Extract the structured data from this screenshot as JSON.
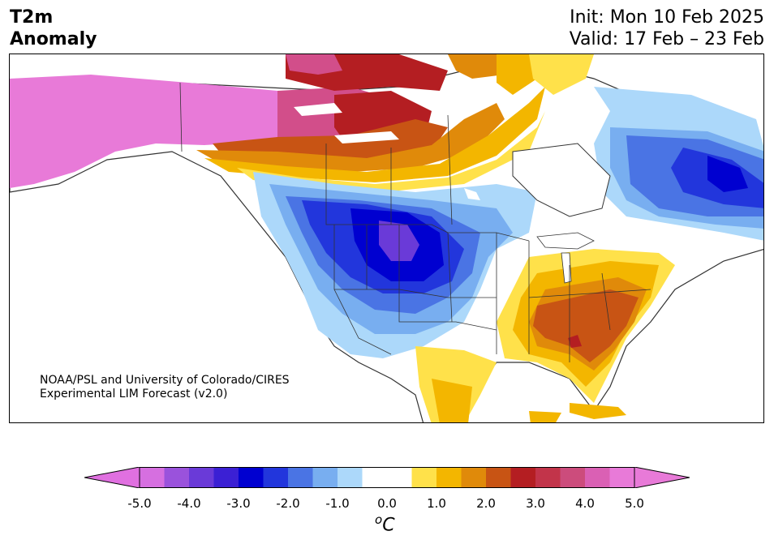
{
  "header": {
    "variable_line1": "T2m",
    "variable_line2": "Anomaly",
    "init": "Init: Mon 10 Feb 2025",
    "valid": "Valid: 17 Feb – 23 Feb"
  },
  "credit": {
    "line1": "NOAA/PSL and University of Colorado/CIRES",
    "line2": "Experimental LIM Forecast (v2.0)"
  },
  "colorbar": {
    "unit_sup": "o",
    "unit_main": "C",
    "ticks": [
      "-5.0",
      "-4.0",
      "-3.0",
      "-2.0",
      "-1.0",
      "0.0",
      "1.0",
      "2.0",
      "3.0",
      "4.0",
      "5.0"
    ],
    "colors": [
      "#d66fe0",
      "#9a52dc",
      "#6a3ad8",
      "#3b20d4",
      "#0000d0",
      "#2236dc",
      "#4a74e4",
      "#78aef0",
      "#acd8fa",
      "#ffffff",
      "#ffffff",
      "#ffe14a",
      "#f3b600",
      "#e08a0a",
      "#c85414",
      "#b41e22",
      "#c2344a",
      "#cc4c7c",
      "#da60b4",
      "#e87ad8"
    ],
    "under_color": "#e070e0",
    "over_color": "#e87ad8"
  },
  "map_colors": {
    "pink_far": "#e87ad8",
    "magenta": "#d24e8a",
    "crimson": "#b41e22",
    "rust": "#c85414",
    "orange": "#e08a0a",
    "gold": "#f3b600",
    "yellow": "#ffe14a",
    "pale_blue": "#acd8fa",
    "light_blue": "#78aef0",
    "mid_blue": "#4a74e4",
    "blue": "#2236dc",
    "dark_blue": "#0000d0",
    "purple": "#6a3ad8"
  }
}
